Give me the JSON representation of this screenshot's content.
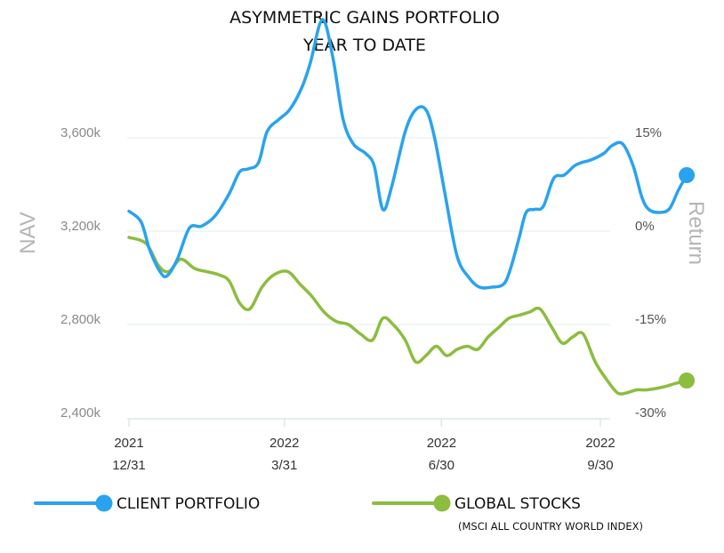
{
  "chart_data": {
    "type": "line",
    "title": "ASYMMETRIC GAINS PORTFOLIO",
    "subtitle": "YEAR TO DATE",
    "ylabel": "NAV",
    "y2label": "Return",
    "ylim": [
      2400,
      3600
    ],
    "y_ticks": [
      "3,600k",
      "3,200k",
      "2,800k",
      "2,400k"
    ],
    "y_tick_values": [
      3600,
      3200,
      2800,
      2400
    ],
    "y2_ticks": [
      "15%",
      "0%",
      "-15%",
      "-30%"
    ],
    "y2_tick_values": [
      15,
      0,
      -15,
      -30
    ],
    "x_ticks": [
      {
        "year": "2021",
        "date": "12/31"
      },
      {
        "year": "2022",
        "date": "3/31"
      },
      {
        "year": "2022",
        "date": "6/30"
      },
      {
        "year": "2022",
        "date": "9/30"
      }
    ],
    "x_range_days": [
      0,
      273
    ],
    "x_tick_days": [
      0,
      90,
      181,
      273
    ],
    "grid": true,
    "series": [
      {
        "name": "CLIENT PORTFOLIO",
        "color": "#29a3ee",
        "axis": "right",
        "points": [
          [
            0,
            3.2
          ],
          [
            7,
            1.5
          ],
          [
            12,
            -3
          ],
          [
            18,
            -6.5
          ],
          [
            22,
            -7.2
          ],
          [
            28,
            -4.5
          ],
          [
            35,
            0.5
          ],
          [
            42,
            0.8
          ],
          [
            50,
            2.5
          ],
          [
            58,
            6
          ],
          [
            64,
            9.5
          ],
          [
            69,
            10
          ],
          [
            75,
            11
          ],
          [
            80,
            16
          ],
          [
            87,
            18
          ],
          [
            93,
            19.5
          ],
          [
            100,
            23
          ],
          [
            105,
            27
          ],
          [
            112,
            34
          ],
          [
            118,
            28
          ],
          [
            124,
            18
          ],
          [
            130,
            14
          ],
          [
            137,
            12.5
          ],
          [
            142,
            10.5
          ],
          [
            147,
            3.5
          ],
          [
            152,
            7
          ],
          [
            160,
            16
          ],
          [
            166,
            19.5
          ],
          [
            172,
            19.5
          ],
          [
            177,
            15
          ],
          [
            183,
            6
          ],
          [
            190,
            -4
          ],
          [
            197,
            -7.5
          ],
          [
            203,
            -9
          ],
          [
            210,
            -9
          ],
          [
            217,
            -8.5
          ],
          [
            221,
            -6
          ],
          [
            226,
            -1
          ],
          [
            230,
            3
          ],
          [
            235,
            3.5
          ],
          [
            240,
            4
          ],
          [
            246,
            8.5
          ],
          [
            252,
            9
          ],
          [
            258,
            10.5
          ],
          [
            262,
            11
          ],
          [
            268,
            11.5
          ],
          [
            275,
            12.5
          ],
          [
            280,
            13.8
          ],
          [
            286,
            14
          ],
          [
            292,
            10.5
          ],
          [
            297,
            5.5
          ],
          [
            301,
            3.5
          ],
          [
            307,
            3
          ],
          [
            313,
            3.6
          ],
          [
            318,
            6.5
          ],
          [
            323,
            9
          ]
        ]
      },
      {
        "name": "GLOBAL STOCKS",
        "subtitle": "(MSCI ALL COUNTRY WORLD INDEX)",
        "color": "#8cbd3f",
        "axis": "right",
        "points": [
          [
            0,
            -1
          ],
          [
            10,
            -2
          ],
          [
            17,
            -5.5
          ],
          [
            23,
            -6.5
          ],
          [
            30,
            -4.5
          ],
          [
            38,
            -6
          ],
          [
            45,
            -6.5
          ],
          [
            52,
            -7
          ],
          [
            58,
            -8
          ],
          [
            64,
            -11.5
          ],
          [
            70,
            -12.5
          ],
          [
            77,
            -9
          ],
          [
            84,
            -7
          ],
          [
            92,
            -6.5
          ],
          [
            99,
            -8.5
          ],
          [
            106,
            -10.5
          ],
          [
            113,
            -13
          ],
          [
            120,
            -14.5
          ],
          [
            127,
            -15
          ],
          [
            134,
            -16.5
          ],
          [
            141,
            -17.5
          ],
          [
            147,
            -14
          ],
          [
            153,
            -15
          ],
          [
            160,
            -17.5
          ],
          [
            166,
            -21
          ],
          [
            172,
            -20
          ],
          [
            178,
            -18.5
          ],
          [
            184,
            -20
          ],
          [
            190,
            -19
          ],
          [
            196,
            -18.5
          ],
          [
            202,
            -19
          ],
          [
            208,
            -17
          ],
          [
            214,
            -15.5
          ],
          [
            220,
            -14
          ],
          [
            226,
            -13.5
          ],
          [
            232,
            -13
          ],
          [
            238,
            -12.5
          ],
          [
            245,
            -15.5
          ],
          [
            251,
            -18
          ],
          [
            257,
            -17
          ],
          [
            263,
            -16.5
          ],
          [
            270,
            -21
          ],
          [
            277,
            -24
          ],
          [
            283,
            -26
          ],
          [
            288,
            -26
          ],
          [
            294,
            -25.5
          ],
          [
            300,
            -25.5
          ],
          [
            310,
            -25
          ],
          [
            316,
            -24.5
          ],
          [
            323,
            -24
          ]
        ]
      }
    ],
    "legend": {
      "placement": "bottom",
      "items": [
        {
          "label": "CLIENT PORTFOLIO",
          "color": "#29a3ee"
        },
        {
          "label": "GLOBAL STOCKS",
          "sub": "(MSCI ALL COUNTRY WORLD INDEX)",
          "color": "#8cbd3f"
        }
      ]
    }
  }
}
